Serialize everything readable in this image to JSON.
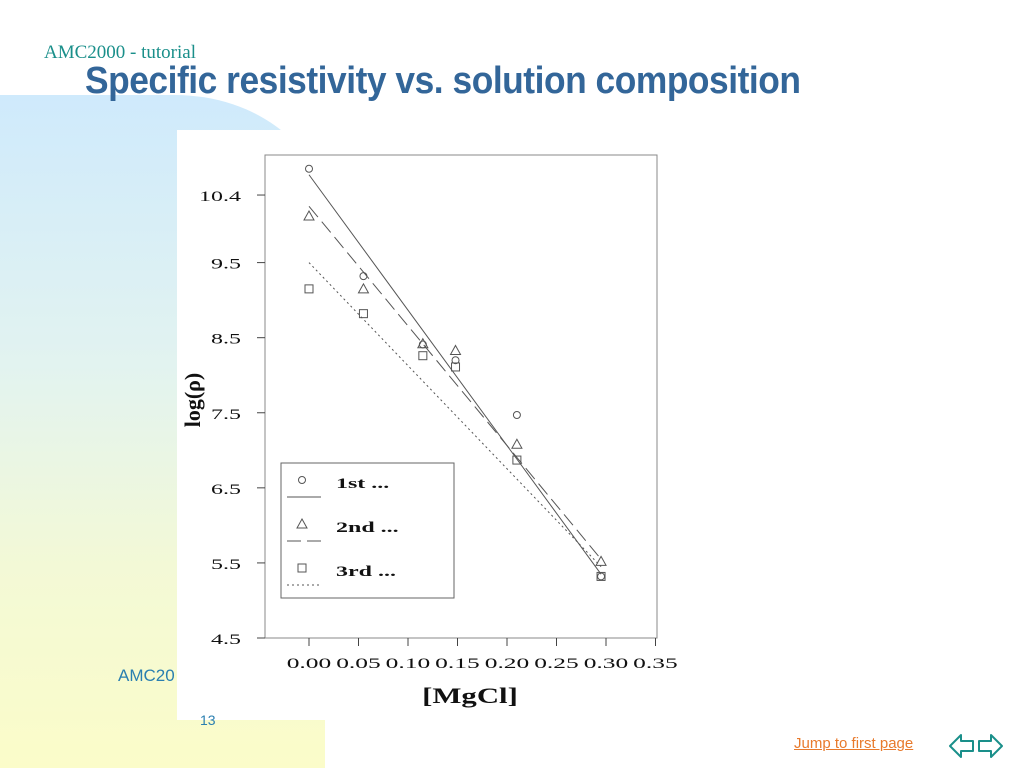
{
  "header": {
    "tutorial_label": "AMC2000 - tutorial",
    "title": "Specific resistivity vs. solution composition"
  },
  "footer": {
    "left_text": "AMC20",
    "page_number": "13",
    "jump_link": "Jump to first page"
  },
  "nav": {
    "prev_icon": "arrow-left-icon",
    "next_icon": "arrow-right-icon"
  },
  "colors": {
    "title": "#336699",
    "accent": "#1a8f8a",
    "link": "#e87a2c",
    "plot": "#555555"
  },
  "chart_data": {
    "type": "scatter",
    "title": "",
    "xlabel": "[MgCl]",
    "ylabel": "log(ρ)",
    "xlim": [
      0.0,
      0.35
    ],
    "ylim": [
      4.5,
      10.8
    ],
    "x_tick_labels": [
      "0.00",
      "0.05",
      "0.10",
      "0.15",
      "0.20",
      "0.25",
      "0.30",
      "0.35"
    ],
    "x_tick_values": [
      0.0,
      0.05,
      0.1,
      0.15,
      0.2,
      0.25,
      0.3,
      0.35
    ],
    "y_tick_labels": [
      "4.5",
      "5.5",
      "6.5",
      "7.5",
      "8.5",
      "9.5",
      "10.4"
    ],
    "y_tick_values": [
      4.5,
      5.5,
      6.5,
      7.5,
      8.5,
      9.5,
      10.4
    ],
    "series": [
      {
        "name": "1st ...",
        "marker": "circle",
        "line": "solid",
        "x": [
          0.0,
          0.055,
          0.115,
          0.148,
          0.21,
          0.295
        ],
        "y": [
          10.75,
          9.32,
          8.41,
          8.2,
          7.47,
          5.32
        ],
        "fit": [
          [
            0.0,
            10.67
          ],
          [
            0.295,
            5.35
          ]
        ]
      },
      {
        "name": "2nd ...",
        "marker": "triangle",
        "line": "dashed",
        "x": [
          0.0,
          0.055,
          0.115,
          0.148,
          0.21,
          0.295
        ],
        "y": [
          10.12,
          9.15,
          8.42,
          8.33,
          7.08,
          5.52
        ],
        "fit": [
          [
            0.0,
            10.25
          ],
          [
            0.295,
            5.55
          ]
        ]
      },
      {
        "name": "3rd ...",
        "marker": "square",
        "line": "dotted",
        "x": [
          0.0,
          0.055,
          0.115,
          0.148,
          0.21,
          0.295
        ],
        "y": [
          9.15,
          8.82,
          8.26,
          8.11,
          6.87,
          5.32
        ],
        "fit": [
          [
            0.0,
            9.5
          ],
          [
            0.295,
            5.45
          ]
        ]
      }
    ]
  }
}
